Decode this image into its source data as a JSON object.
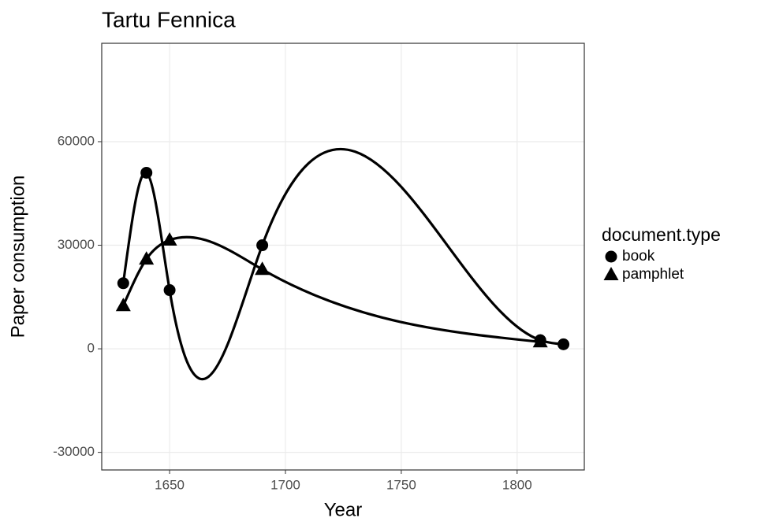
{
  "chart_data": {
    "type": "scatter",
    "title": "Tartu Fennica",
    "x_label": "Year",
    "y_label": "Paper consumption",
    "legend_title": "document.type",
    "legend_position": "right",
    "grid": true,
    "series": [
      {
        "name": "book",
        "color": "#000000",
        "shape": "circle",
        "x": [
          1630,
          1640,
          1650,
          1690,
          1810,
          1820
        ],
        "values": [
          19000,
          51000,
          17000,
          30000,
          2500,
          1300
        ]
      },
      {
        "name": "pamphlet",
        "color": "#000000",
        "shape": "triangle",
        "x": [
          1630,
          1640,
          1650,
          1690,
          1810
        ],
        "values": [
          12500,
          26000,
          31500,
          23000,
          2000
        ]
      }
    ],
    "xlim": [
      1620.7,
      1829
    ],
    "xticks": [
      1650,
      1700,
      1750,
      1800
    ],
    "ylim": [
      -35100,
      88500
    ],
    "yticks": [
      -30000,
      0,
      30000,
      60000
    ]
  }
}
